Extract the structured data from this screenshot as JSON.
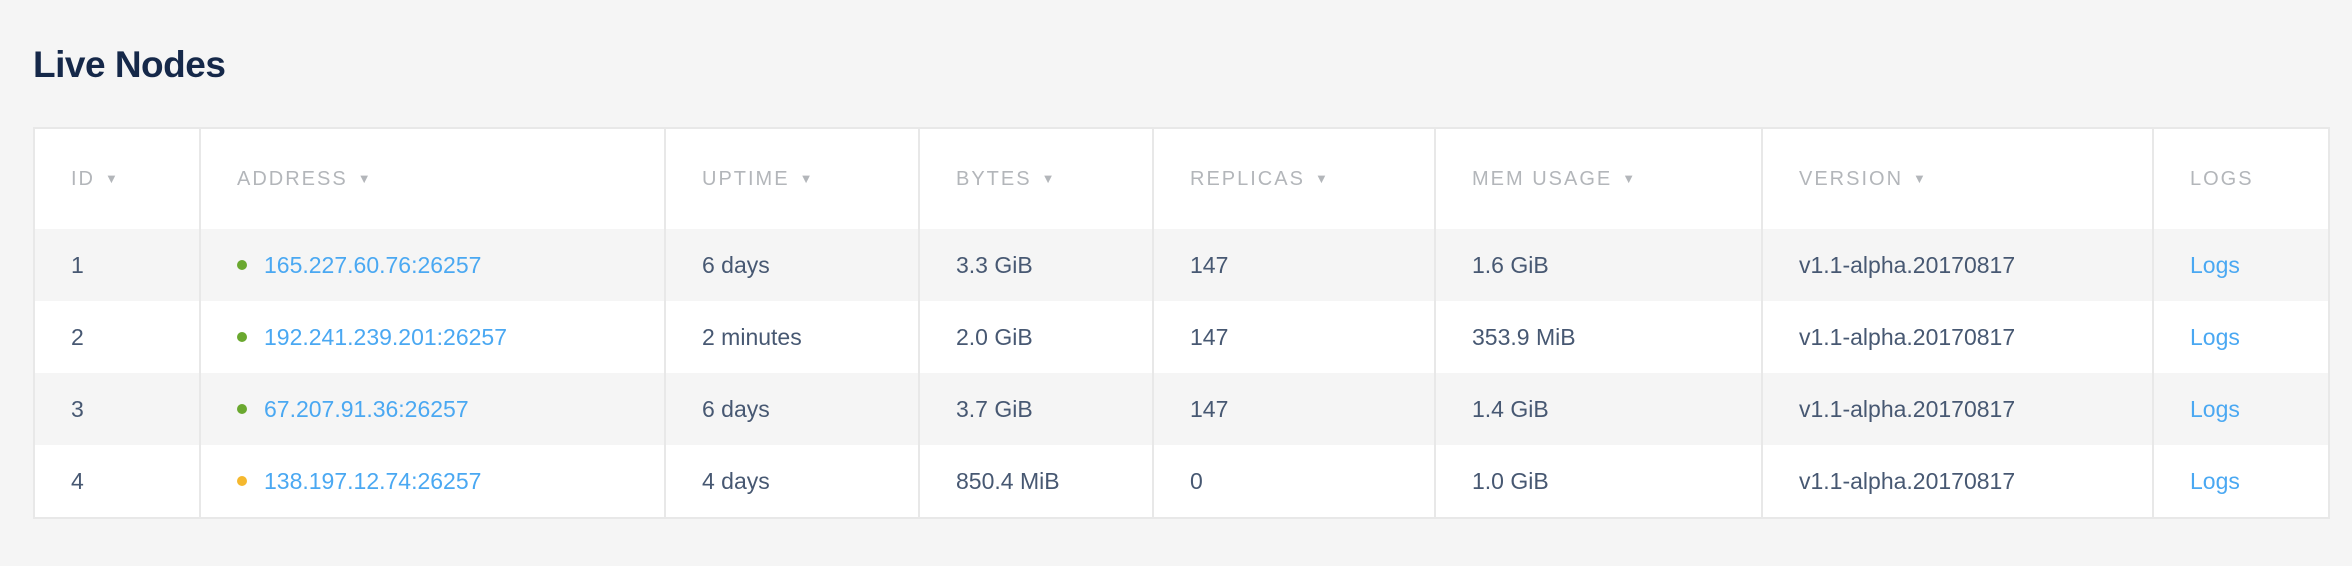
{
  "page_title": "Live Nodes",
  "colors": {
    "healthy": "#6aa82f",
    "suspect": "#f5b82e",
    "link": "#4aa8f2"
  },
  "columns": [
    {
      "label": "ID",
      "sortable": true
    },
    {
      "label": "ADDRESS",
      "sortable": true
    },
    {
      "label": "UPTIME",
      "sortable": true
    },
    {
      "label": "BYTES",
      "sortable": true
    },
    {
      "label": "REPLICAS",
      "sortable": true
    },
    {
      "label": "MEM USAGE",
      "sortable": true
    },
    {
      "label": "VERSION",
      "sortable": true
    },
    {
      "label": "LOGS",
      "sortable": false
    }
  ],
  "sort_caret": "▼",
  "rows": [
    {
      "id": "1",
      "status": "healthy",
      "address": "165.227.60.76:26257",
      "uptime": "6 days",
      "bytes": "3.3 GiB",
      "replicas": "147",
      "mem": "1.6 GiB",
      "version": "v1.1-alpha.20170817",
      "logs": "Logs"
    },
    {
      "id": "2",
      "status": "healthy",
      "address": "192.241.239.201:26257",
      "uptime": "2 minutes",
      "bytes": "2.0 GiB",
      "replicas": "147",
      "mem": "353.9 MiB",
      "version": "v1.1-alpha.20170817",
      "logs": "Logs"
    },
    {
      "id": "3",
      "status": "healthy",
      "address": "67.207.91.36:26257",
      "uptime": "6 days",
      "bytes": "3.7 GiB",
      "replicas": "147",
      "mem": "1.4 GiB",
      "version": "v1.1-alpha.20170817",
      "logs": "Logs"
    },
    {
      "id": "4",
      "status": "suspect",
      "address": "138.197.12.74:26257",
      "uptime": "4 days",
      "bytes": "850.4 MiB",
      "replicas": "0",
      "mem": "1.0 GiB",
      "version": "v1.1-alpha.20170817",
      "logs": "Logs"
    }
  ]
}
